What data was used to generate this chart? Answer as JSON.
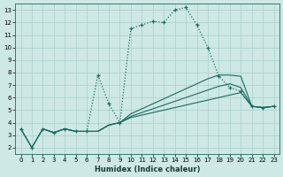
{
  "xlabel": "Humidex (Indice chaleur)",
  "bg_color": "#cde8e5",
  "line_color": "#1a6b5e",
  "grid_color": "#aacfcc",
  "xlim": [
    -0.5,
    23.5
  ],
  "ylim": [
    1.5,
    13.5
  ],
  "xticks": [
    0,
    1,
    2,
    3,
    4,
    5,
    6,
    7,
    8,
    9,
    10,
    11,
    12,
    13,
    14,
    15,
    16,
    17,
    18,
    19,
    20,
    21,
    22,
    23
  ],
  "yticks": [
    2,
    3,
    4,
    5,
    6,
    7,
    8,
    9,
    10,
    11,
    12,
    13
  ],
  "main_x": [
    0,
    1,
    2,
    3,
    4,
    5,
    6,
    7,
    8,
    9,
    10,
    11,
    12,
    13,
    14,
    15,
    16,
    17,
    18,
    19,
    20,
    21,
    22,
    23
  ],
  "main_y": [
    3.5,
    2.0,
    3.5,
    3.2,
    3.5,
    3.3,
    3.3,
    7.8,
    5.5,
    4.0,
    11.5,
    11.8,
    12.1,
    12.0,
    13.0,
    13.2,
    11.8,
    10.0,
    7.7,
    6.8,
    6.5,
    5.3,
    5.2,
    5.3
  ],
  "line_a_x": [
    0,
    1,
    2,
    3,
    4,
    5,
    6,
    7,
    8,
    9,
    10,
    11,
    12,
    13,
    14,
    15,
    16,
    17,
    18,
    19,
    20,
    21,
    22,
    23
  ],
  "line_a_y": [
    3.5,
    2.0,
    3.5,
    3.2,
    3.5,
    3.3,
    3.3,
    3.3,
    3.8,
    4.0,
    4.4,
    4.6,
    4.8,
    5.0,
    5.2,
    5.4,
    5.6,
    5.8,
    6.0,
    6.2,
    6.4,
    5.3,
    5.2,
    5.3
  ],
  "line_b_x": [
    0,
    1,
    2,
    3,
    4,
    5,
    6,
    7,
    8,
    9,
    10,
    11,
    12,
    13,
    14,
    15,
    16,
    17,
    18,
    19,
    20,
    21,
    22,
    23
  ],
  "line_b_y": [
    3.5,
    2.0,
    3.5,
    3.2,
    3.5,
    3.3,
    3.3,
    3.3,
    3.8,
    4.0,
    4.5,
    4.8,
    5.1,
    5.4,
    5.7,
    6.0,
    6.3,
    6.6,
    6.9,
    7.1,
    6.8,
    5.3,
    5.2,
    5.3
  ],
  "line_c_x": [
    2,
    3,
    4,
    5,
    6,
    7,
    8,
    9,
    10,
    11,
    12,
    13,
    14,
    15,
    16,
    17,
    18,
    19,
    20,
    21,
    22,
    23
  ],
  "line_c_y": [
    3.5,
    3.2,
    3.5,
    3.3,
    3.3,
    3.3,
    3.8,
    4.0,
    4.7,
    5.1,
    5.5,
    5.9,
    6.3,
    6.7,
    7.1,
    7.5,
    7.8,
    7.8,
    7.7,
    5.3,
    5.2,
    5.3
  ]
}
